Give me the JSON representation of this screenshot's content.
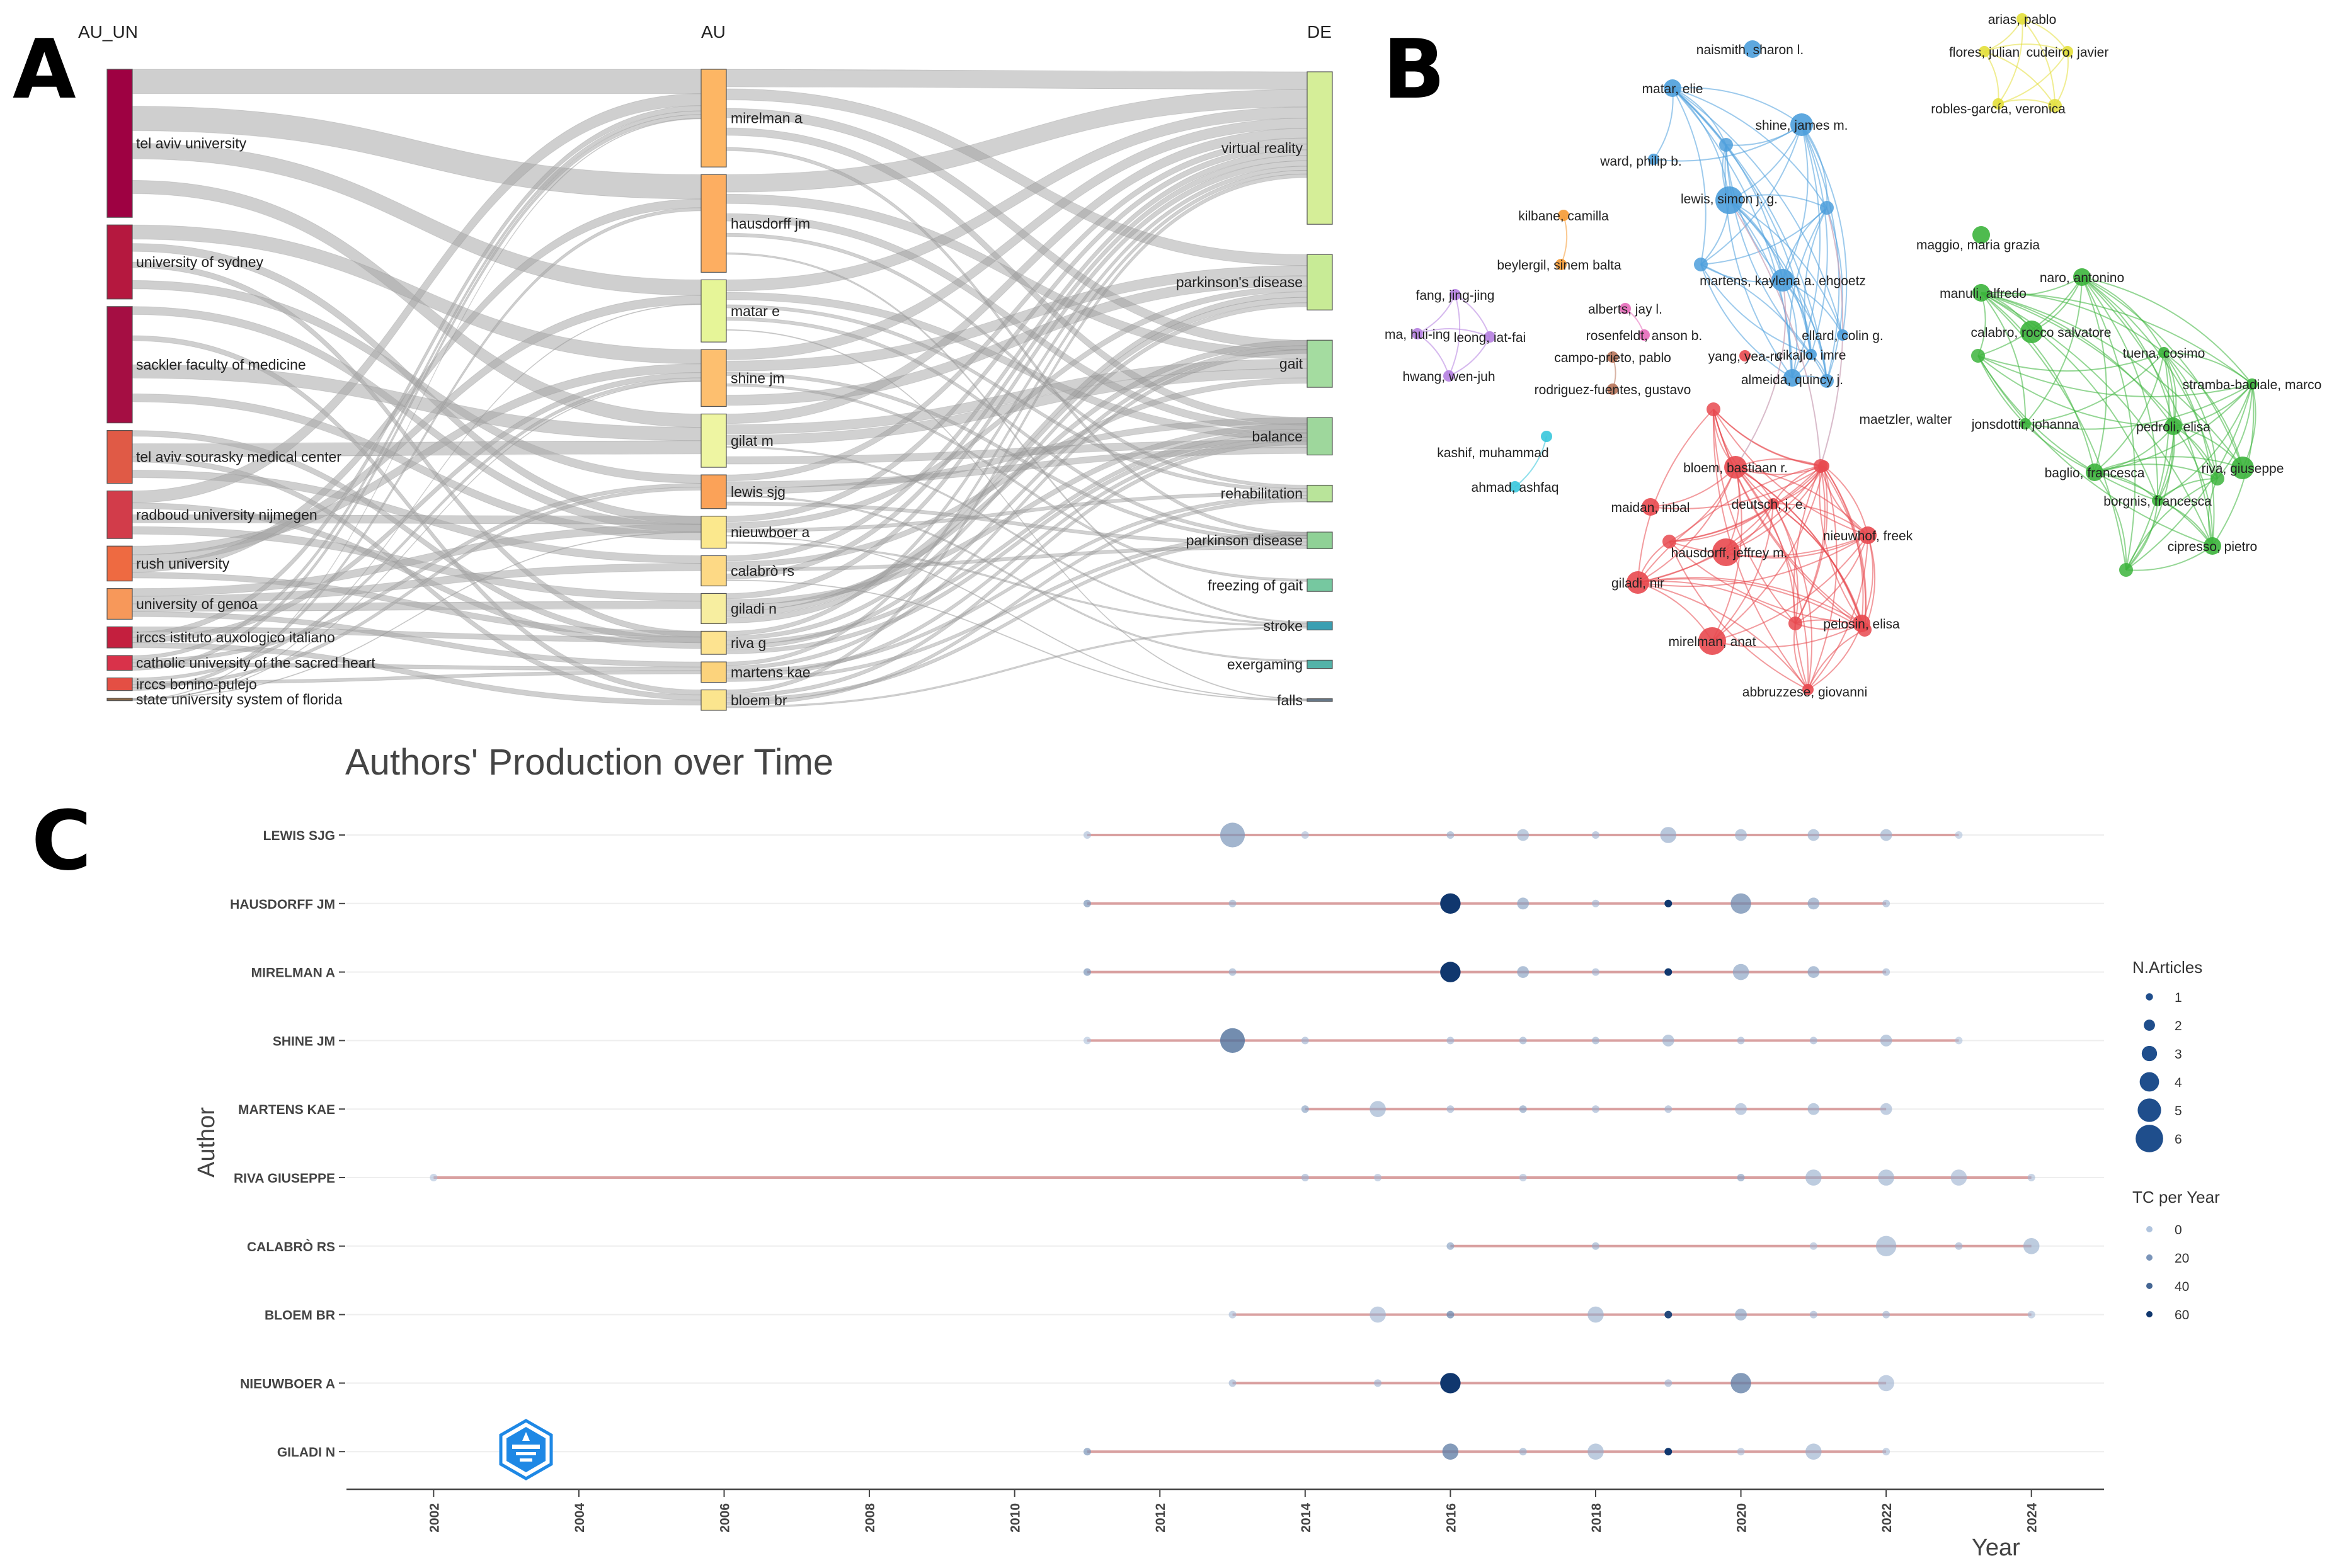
{
  "panels": {
    "a": "A",
    "b": "B",
    "c": "C"
  },
  "sankey": {
    "headers": {
      "left": "AU_UN",
      "mid": "AU",
      "right": "DE"
    },
    "institutions": [
      {
        "label": "tel aviv university",
        "color": "#9e0142",
        "weight": 14
      },
      {
        "label": "university of sydney",
        "color": "#b5183f",
        "weight": 7
      },
      {
        "label": "sackler faculty of medicine",
        "color": "#a50e43",
        "weight": 11
      },
      {
        "label": "tel aviv sourasky medical center",
        "color": "#e05a46",
        "weight": 5
      },
      {
        "label": "radboud university nijmegen",
        "color": "#d23c4a",
        "weight": 4.5
      },
      {
        "label": "rush university",
        "color": "#ee6a41",
        "weight": 3.3
      },
      {
        "label": "university of genoa",
        "color": "#f7985a",
        "weight": 2.9
      },
      {
        "label": "irccs istituto auxologico italiano",
        "color": "#c41f3e",
        "weight": 2
      },
      {
        "label": "catholic university of the sacred heart",
        "color": "#d9324a",
        "weight": 1.4
      },
      {
        "label": "irccs bonino-pulejo",
        "color": "#e44f44",
        "weight": 1.2
      },
      {
        "label": "state university system of florida",
        "color": "#8b6a4a",
        "weight": 0.2
      }
    ],
    "authors": [
      {
        "label": "mirelman a",
        "color": "#fdb664",
        "weight": 11
      },
      {
        "label": "hausdorff jm",
        "color": "#fdae61",
        "weight": 11
      },
      {
        "label": "matar e",
        "color": "#e6f598",
        "weight": 7
      },
      {
        "label": "shine jm",
        "color": "#fdbf6f",
        "weight": 6.4
      },
      {
        "label": "gilat m",
        "color": "#eef5a2",
        "weight": 6
      },
      {
        "label": "lewis sjg",
        "color": "#fba258",
        "weight": 3.8
      },
      {
        "label": "nieuwboer a",
        "color": "#fbe88d",
        "weight": 3.6
      },
      {
        "label": "calabrò rs",
        "color": "#fdd985",
        "weight": 3.4
      },
      {
        "label": "giladi n",
        "color": "#f7eea0",
        "weight": 3.4
      },
      {
        "label": "riva g",
        "color": "#fde390",
        "weight": 2.6
      },
      {
        "label": "martens kae",
        "color": "#fcd37c",
        "weight": 2.3
      },
      {
        "label": "bloem br",
        "color": "#fbe58e",
        "weight": 2.3
      }
    ],
    "keywords": [
      {
        "label": "virtual reality",
        "color": "#d5ee98",
        "weight": 11
      },
      {
        "label": "parkinson's disease",
        "color": "#c8eb96",
        "weight": 4
      },
      {
        "label": "gait",
        "color": "#a4dca0",
        "weight": 3.4
      },
      {
        "label": "balance",
        "color": "#9ed79c",
        "weight": 2.7
      },
      {
        "label": "rehabilitation",
        "color": "#b9e49a",
        "weight": 1.2
      },
      {
        "label": "parkinson disease",
        "color": "#8fd196",
        "weight": 1.2
      },
      {
        "label": "freezing of gait",
        "color": "#76c8a0",
        "weight": 0.9
      },
      {
        "label": "stroke",
        "color": "#3a9fb2",
        "weight": 0.6
      },
      {
        "label": "exergaming",
        "color": "#53b3a8",
        "weight": 0.6
      },
      {
        "label": "falls",
        "color": "#667788",
        "weight": 0.2
      }
    ]
  },
  "network": {
    "nodes": [
      {
        "label": "naismith, sharon l.",
        "cluster": "blue",
        "size": 2
      },
      {
        "label": "matar, elie",
        "cluster": "blue",
        "size": 2
      },
      {
        "label": "shine, james m.",
        "cluster": "blue",
        "size": 3
      },
      {
        "label": "ward, philip b.",
        "cluster": "blue",
        "size": 1
      },
      {
        "label": "lewis, simon j. g.",
        "cluster": "blue",
        "size": 4
      },
      {
        "label": "martens, kaylena a. ehgoetz",
        "cluster": "blue",
        "size": 3
      },
      {
        "label": "ellard, colin g.",
        "cluster": "blue",
        "size": 1
      },
      {
        "label": "cikajlo, imre",
        "cluster": "blue",
        "size": 1
      },
      {
        "label": "almeida, quincy j.",
        "cluster": "blue",
        "size": 2
      },
      {
        "label": "arias, pablo",
        "cluster": "yellow",
        "size": 1
      },
      {
        "label": "flores, julian",
        "cluster": "yellow",
        "size": 1
      },
      {
        "label": "cudeiro, javier",
        "cluster": "yellow",
        "size": 1
      },
      {
        "label": "robles-garcía, veronica",
        "cluster": "yellow",
        "size": 1
      },
      {
        "label": "kilbane, camilla",
        "cluster": "orange",
        "size": 1
      },
      {
        "label": "beylergil, sinem balta",
        "cluster": "orange",
        "size": 1
      },
      {
        "label": "fang, jing-jing",
        "cluster": "purple",
        "size": 1
      },
      {
        "label": "ma, hui-ing",
        "cluster": "purple",
        "size": 1
      },
      {
        "label": "leong, iat-fai",
        "cluster": "purple",
        "size": 1
      },
      {
        "label": "hwang, wen-juh",
        "cluster": "purple",
        "size": 1
      },
      {
        "label": "alberts, jay l.",
        "cluster": "pink",
        "size": 1
      },
      {
        "label": "rosenfeldt, anson b.",
        "cluster": "pink",
        "size": 1
      },
      {
        "label": "campo-prieto, pablo",
        "cluster": "brown",
        "size": 1
      },
      {
        "label": "rodriguez-fuentes, gustavo",
        "cluster": "brown",
        "size": 1
      },
      {
        "label": "yang, yea-ru",
        "cluster": "red",
        "size": 1
      },
      {
        "label": "kashif, muhammad",
        "cluster": "cyan",
        "size": 1
      },
      {
        "label": "ahmad, ashfaq",
        "cluster": "cyan",
        "size": 1
      },
      {
        "label": "maetzler, walter",
        "cluster": "red",
        "size": 1
      },
      {
        "label": "bloem, bastiaan r.",
        "cluster": "red",
        "size": 3
      },
      {
        "label": "maidan, inbal",
        "cluster": "red",
        "size": 2
      },
      {
        "label": "deutsch, j. e.",
        "cluster": "red",
        "size": 1
      },
      {
        "label": "nieuwhof, freek",
        "cluster": "red",
        "size": 2
      },
      {
        "label": "hausdorff, jeffrey m.",
        "cluster": "red",
        "size": 4
      },
      {
        "label": "giladi, nir",
        "cluster": "red",
        "size": 3
      },
      {
        "label": "pelosin, elisa",
        "cluster": "red",
        "size": 2
      },
      {
        "label": "mirelman, anat",
        "cluster": "red",
        "size": 4
      },
      {
        "label": "abbruzzese, giovanni",
        "cluster": "red",
        "size": 1
      },
      {
        "label": "maggio, maria grazia",
        "cluster": "green",
        "size": 2
      },
      {
        "label": "naro, antonino",
        "cluster": "green",
        "size": 2
      },
      {
        "label": "manuli, alfredo",
        "cluster": "green",
        "size": 2
      },
      {
        "label": "calabro, rocco salvatore",
        "cluster": "green",
        "size": 3
      },
      {
        "label": "tuena, cosimo",
        "cluster": "green",
        "size": 1
      },
      {
        "label": "stramba-badiale, marco",
        "cluster": "green",
        "size": 1
      },
      {
        "label": "jonsdottir, johanna",
        "cluster": "green",
        "size": 1
      },
      {
        "label": "pedroli, elisa",
        "cluster": "green",
        "size": 2
      },
      {
        "label": "baglio, francesca",
        "cluster": "green",
        "size": 2
      },
      {
        "label": "riva, giuseppe",
        "cluster": "green",
        "size": 3
      },
      {
        "label": "borgnis, francesca",
        "cluster": "green",
        "size": 1
      },
      {
        "label": "cipresso, pietro",
        "cluster": "green",
        "size": 2
      }
    ],
    "colors": {
      "blue": "#4d9fdc",
      "red": "#e8494f",
      "green": "#3cb43c",
      "yellow": "#e3df3a",
      "orange": "#f59a34",
      "purple": "#b57fe0",
      "pink": "#e66ab9",
      "brown": "#b8745a",
      "cyan": "#37c6dc"
    }
  },
  "chart_data": {
    "type": "scatter",
    "title": "Authors' Production over Time",
    "xlabel": "Year",
    "ylabel": "Author",
    "xlim": [
      2000.8,
      2025.0
    ],
    "x_ticks": [
      2002,
      2004,
      2006,
      2008,
      2010,
      2012,
      2014,
      2016,
      2018,
      2020,
      2022,
      2024
    ],
    "authors": [
      "LEWIS SJG",
      "HAUSDORFF JM",
      "MIRELMAN A",
      "SHINE JM",
      "MARTENS KAE",
      "RIVA GIUSEPPE",
      "CALABRÒ RS",
      "BLOEM BR",
      "NIEUWBOER A",
      "GILADI N"
    ],
    "series": [
      {
        "name": "LEWIS SJG",
        "points": [
          [
            2011,
            1,
            5
          ],
          [
            2013,
            5,
            20
          ],
          [
            2014,
            1,
            5
          ],
          [
            2016,
            1,
            10
          ],
          [
            2017,
            2,
            10
          ],
          [
            2018,
            1,
            8
          ],
          [
            2019,
            3,
            12
          ],
          [
            2020,
            2,
            10
          ],
          [
            2021,
            2,
            10
          ],
          [
            2022,
            2,
            10
          ],
          [
            2023,
            1,
            3
          ]
        ]
      },
      {
        "name": "HAUSDORFF JM",
        "points": [
          [
            2011,
            1,
            20
          ],
          [
            2013,
            1,
            10
          ],
          [
            2016,
            4,
            60
          ],
          [
            2017,
            2,
            15
          ],
          [
            2018,
            1,
            8
          ],
          [
            2019,
            1,
            60
          ],
          [
            2020,
            4,
            25
          ],
          [
            2021,
            2,
            15
          ],
          [
            2022,
            1,
            8
          ]
        ]
      },
      {
        "name": "MIRELMAN A",
        "points": [
          [
            2011,
            1,
            20
          ],
          [
            2013,
            1,
            10
          ],
          [
            2016,
            4,
            60
          ],
          [
            2017,
            2,
            15
          ],
          [
            2018,
            1,
            8
          ],
          [
            2019,
            1,
            60
          ],
          [
            2020,
            3,
            15
          ],
          [
            2021,
            2,
            15
          ],
          [
            2022,
            1,
            8
          ]
        ]
      },
      {
        "name": "SHINE JM",
        "points": [
          [
            2011,
            1,
            3
          ],
          [
            2013,
            5,
            35
          ],
          [
            2014,
            1,
            8
          ],
          [
            2016,
            1,
            8
          ],
          [
            2017,
            1,
            10
          ],
          [
            2018,
            1,
            10
          ],
          [
            2019,
            2,
            10
          ],
          [
            2020,
            1,
            8
          ],
          [
            2021,
            1,
            8
          ],
          [
            2022,
            2,
            10
          ],
          [
            2023,
            1,
            3
          ]
        ]
      },
      {
        "name": "MARTENS KAE",
        "points": [
          [
            2014,
            1,
            15
          ],
          [
            2015,
            3,
            10
          ],
          [
            2016,
            1,
            8
          ],
          [
            2017,
            1,
            15
          ],
          [
            2018,
            1,
            8
          ],
          [
            2019,
            1,
            8
          ],
          [
            2020,
            2,
            8
          ],
          [
            2021,
            2,
            10
          ],
          [
            2022,
            2,
            8
          ]
        ]
      },
      {
        "name": "RIVA GIUSEPPE",
        "points": [
          [
            2002,
            1,
            3
          ],
          [
            2014,
            1,
            8
          ],
          [
            2015,
            1,
            5
          ],
          [
            2017,
            1,
            5
          ],
          [
            2020,
            1,
            15
          ],
          [
            2021,
            3,
            10
          ],
          [
            2022,
            3,
            10
          ],
          [
            2023,
            3,
            8
          ],
          [
            2024,
            1,
            5
          ]
        ]
      },
      {
        "name": "CALABRÒ RS",
        "points": [
          [
            2016,
            1,
            15
          ],
          [
            2018,
            1,
            10
          ],
          [
            2021,
            1,
            5
          ],
          [
            2022,
            4,
            10
          ],
          [
            2023,
            1,
            8
          ],
          [
            2024,
            3,
            10
          ]
        ]
      },
      {
        "name": "BLOEM BR",
        "points": [
          [
            2013,
            1,
            5
          ],
          [
            2015,
            3,
            8
          ],
          [
            2016,
            1,
            25
          ],
          [
            2018,
            3,
            10
          ],
          [
            2019,
            1,
            55
          ],
          [
            2020,
            2,
            15
          ],
          [
            2021,
            1,
            8
          ],
          [
            2022,
            1,
            8
          ],
          [
            2024,
            1,
            5
          ]
        ]
      },
      {
        "name": "NIEUWBOER A",
        "points": [
          [
            2013,
            1,
            8
          ],
          [
            2015,
            1,
            8
          ],
          [
            2016,
            4,
            60
          ],
          [
            2019,
            1,
            8
          ],
          [
            2020,
            4,
            30
          ],
          [
            2022,
            3,
            8
          ]
        ]
      },
      {
        "name": "GILADI N",
        "points": [
          [
            2011,
            1,
            20
          ],
          [
            2016,
            3,
            30
          ],
          [
            2017,
            1,
            10
          ],
          [
            2018,
            3,
            10
          ],
          [
            2019,
            1,
            60
          ],
          [
            2020,
            1,
            5
          ],
          [
            2021,
            3,
            10
          ],
          [
            2022,
            1,
            5
          ]
        ]
      }
    ],
    "legend_size": {
      "title": "N.Articles",
      "items": [
        "1",
        "2",
        "3",
        "4",
        "5",
        "6"
      ]
    },
    "legend_color": {
      "title": "TC per Year",
      "items": [
        "0",
        "20",
        "40",
        "60"
      ]
    }
  }
}
